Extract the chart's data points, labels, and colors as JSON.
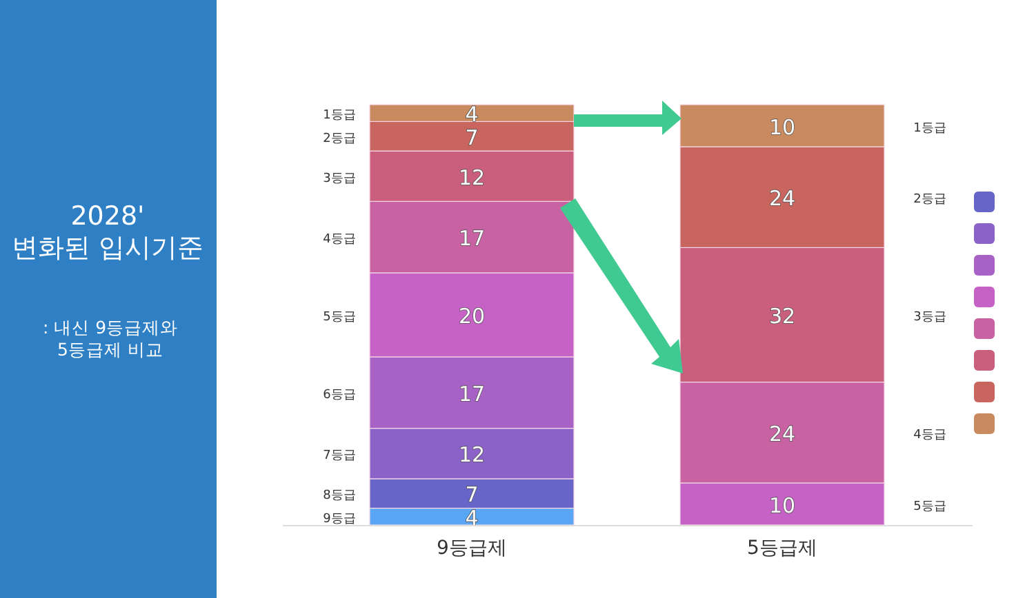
{
  "chart_data": {
    "type": "bar",
    "title": "2028'\n변화된 입시기준",
    "subtitle": ": 내신 9등급제와\n5등급제 비교",
    "categories": [
      "9등급제",
      "5등급제"
    ],
    "stacked": true,
    "data_labels": true,
    "series": [
      {
        "values": [
          4,
          10
        ],
        "colors": [
          "#58a6f5",
          "#c662c6"
        ]
      },
      {
        "values": [
          7,
          24
        ],
        "colors": [
          "#6766c8",
          "#c862a2"
        ]
      },
      {
        "values": [
          12,
          32
        ],
        "colors": [
          "#8a62c8",
          "#c95f7d"
        ]
      },
      {
        "values": [
          17,
          24
        ],
        "colors": [
          "#a862c6",
          "#c9655f"
        ]
      },
      {
        "values": [
          20,
          10
        ],
        "colors": [
          "#c662c6",
          "#c98a60"
        ]
      },
      {
        "values": [
          17,
          null
        ],
        "colors": [
          "#c862a2",
          null
        ]
      },
      {
        "values": [
          12,
          null
        ],
        "colors": [
          "#c95f7d",
          null
        ]
      },
      {
        "values": [
          7,
          null
        ],
        "colors": [
          "#c9655f",
          null
        ]
      },
      {
        "values": [
          4,
          null
        ],
        "colors": [
          "#c98a60",
          null
        ]
      }
    ],
    "annotations": [
      "1등급",
      "2등급",
      "3등급",
      "4등급",
      "5등급",
      "6등급",
      "7등급",
      "8등급",
      "9등급",
      "1등급",
      "2등급",
      "3등급",
      "4등급",
      "5등급"
    ]
  }
}
